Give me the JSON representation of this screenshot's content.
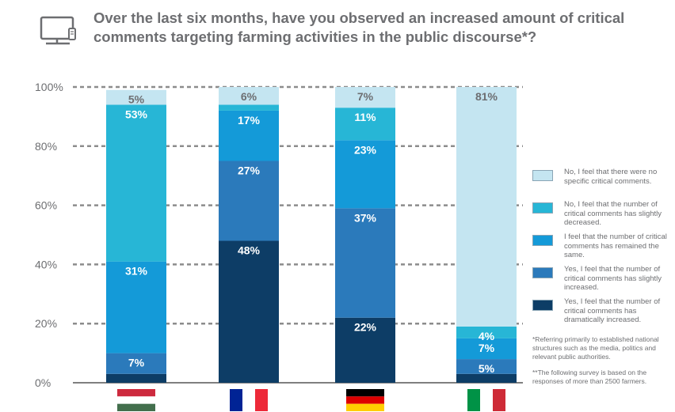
{
  "title": "Over the last six months, have you observed an increased amount of critical comments targeting farming activities in the public discourse*?",
  "icon": "monitor-icon",
  "notes": [
    "*Referring primarily to established national structures such as the media, politics and relevant public authorities.",
    "**The following survey is based on the responses of more than 2500 farmers."
  ],
  "chart_data": {
    "type": "bar",
    "stacked": true,
    "title": "",
    "xlabel": "",
    "ylabel": "",
    "ylim": [
      0,
      100
    ],
    "y_ticks": [
      "0%",
      "20%",
      "40%",
      "60%",
      "80%",
      "100%"
    ],
    "grid": true,
    "legend_position": "right",
    "categories": [
      "Hungary",
      "France",
      "Germany",
      "Italy"
    ],
    "category_flags": [
      "hungary-flag",
      "france-flag",
      "germany-flag",
      "italy-flag"
    ],
    "series": [
      {
        "name": "Yes, I feel that the number of critical comments has dramatically increased.",
        "color": "#0d3d66",
        "values": [
          3,
          48,
          22,
          3
        ],
        "labels": [
          "",
          "48%",
          "22%",
          ""
        ]
      },
      {
        "name": "Yes, I feel that the number of critical comments has slightly increased.",
        "color": "#2b7abb",
        "values": [
          7,
          27,
          37,
          5
        ],
        "labels": [
          "7%",
          "27%",
          "37%",
          "5%"
        ]
      },
      {
        "name": "I feel that the number of critical comments has remained the same.",
        "color": "#149ad8",
        "values": [
          31,
          17,
          23,
          7
        ],
        "labels": [
          "31%",
          "17%",
          "23%",
          "7%"
        ]
      },
      {
        "name": "No, I feel that the number of critical comments has slightly decreased.",
        "color": "#27b6d6",
        "values": [
          53,
          2,
          11,
          4
        ],
        "labels": [
          "53%",
          "",
          "11%",
          "4%"
        ]
      },
      {
        "name": "No, I feel that there were no specific critical comments.",
        "color": "#c4e5f1",
        "values": [
          5,
          6,
          7,
          81
        ],
        "labels": [
          "5%",
          "6%",
          "7%",
          "81%"
        ]
      }
    ]
  }
}
